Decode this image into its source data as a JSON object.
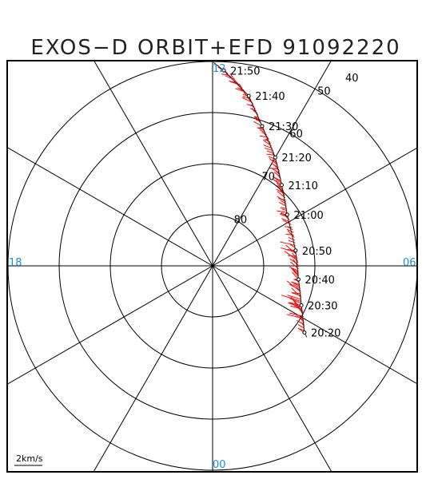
{
  "chart_data": {
    "type": "polar_orbit",
    "title": "EXOS−D ORBIT+EFD 91092220",
    "mlt_labels": {
      "top": "12",
      "right": "06",
      "bottom": "00",
      "left": "18"
    },
    "latitude_rings": [
      50,
      60,
      70,
      80
    ],
    "latitude_labels": [
      {
        "text": "40",
        "lat": 40
      },
      {
        "text": "50",
        "lat": 50
      },
      {
        "text": "60",
        "lat": 60
      },
      {
        "text": "70",
        "lat": 70
      },
      {
        "text": "80",
        "lat": 80
      }
    ],
    "orbit_ticks": [
      {
        "time": "21:50",
        "lat": 51.7,
        "mlt": 11.78
      },
      {
        "time": "21:40",
        "lat": 56.0,
        "mlt": 11.2
      },
      {
        "time": "21:30",
        "lat": 61.0,
        "mlt": 10.7
      },
      {
        "time": "21:20",
        "lat": 65.5,
        "mlt": 10.0
      },
      {
        "time": "21:10",
        "lat": 69.2,
        "mlt": 9.3
      },
      {
        "time": "21:00",
        "lat": 72.3,
        "mlt": 8.3
      },
      {
        "time": "20:50",
        "lat": 73.5,
        "mlt": 6.7
      },
      {
        "time": "20:40",
        "lat": 73.0,
        "mlt": 5.4
      },
      {
        "time": "20:30",
        "lat": 71.0,
        "mlt": 4.4
      },
      {
        "time": "20:20",
        "lat": 67.8,
        "mlt": 3.6
      }
    ],
    "scale_bar": "2km/s",
    "colors": {
      "orbit": "#222222",
      "efd": "#ff0000",
      "grid": "#000000",
      "mlt": "#1a8fd6"
    }
  }
}
